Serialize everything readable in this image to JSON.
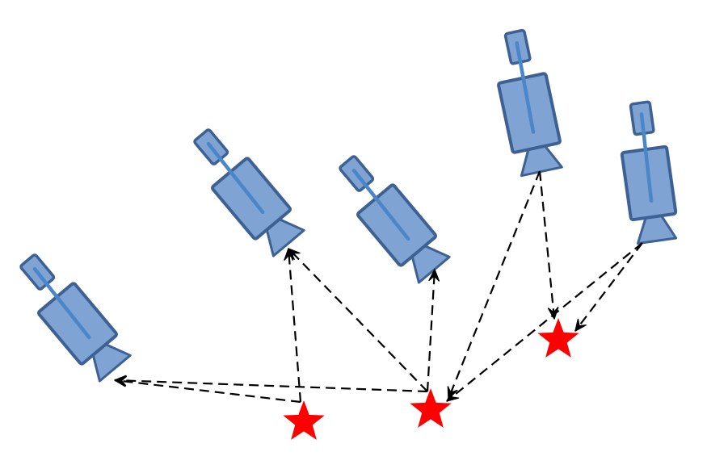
{
  "colors": {
    "camera_fill": "#7fa3d3",
    "camera_stroke": "#3e6193",
    "camera_strap": "#4a86c8",
    "point_fill": "#ff0000",
    "ray_stroke": "#000000"
  },
  "icons": {
    "camera": "video-camera-icon",
    "point": "star-icon",
    "ray": "dashed-arrow"
  },
  "diagram": {
    "cameras": [
      {
        "id": "camera-1"
      },
      {
        "id": "camera-2"
      },
      {
        "id": "camera-3"
      },
      {
        "id": "camera-4"
      },
      {
        "id": "camera-5"
      }
    ],
    "points": [
      {
        "id": "point-1"
      },
      {
        "id": "point-2"
      },
      {
        "id": "point-3"
      }
    ],
    "rays": [
      {
        "from": "point-1",
        "to": "camera-1"
      },
      {
        "from": "point-1",
        "to": "camera-2"
      },
      {
        "from": "point-2",
        "to": "camera-1"
      },
      {
        "from": "point-2",
        "to": "camera-2"
      },
      {
        "from": "point-2",
        "to": "camera-3"
      },
      {
        "from": "camera-4",
        "to": "point-2"
      },
      {
        "from": "camera-5",
        "to": "point-2"
      },
      {
        "from": "camera-4",
        "to": "point-3"
      },
      {
        "from": "camera-5",
        "to": "point-3"
      }
    ]
  }
}
